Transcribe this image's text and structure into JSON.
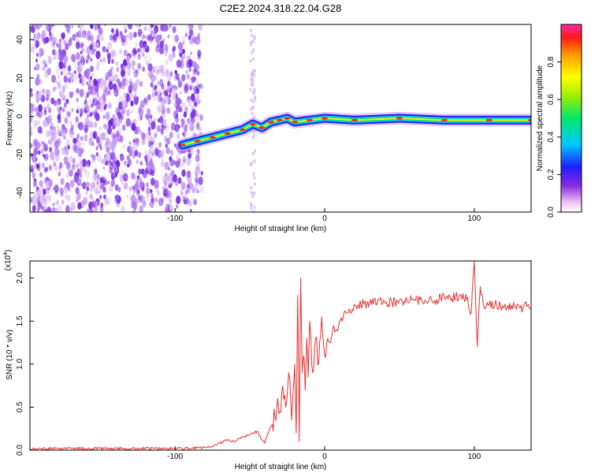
{
  "title": "C2E2.2024.318.22.04.G28",
  "chart_data": [
    {
      "type": "heatmap",
      "xlabel": "Height of straight line (km)",
      "ylabel": "Frequency (Hz)",
      "xlim": [
        -197,
        138
      ],
      "ylim": [
        -50,
        48
      ],
      "xticks": [
        -100,
        0,
        100
      ],
      "xtick_labels": [
        "-100",
        "0",
        "100"
      ],
      "yticks": [
        -40,
        -20,
        0,
        20,
        40
      ],
      "ytick_labels": [
        "-40",
        "-20",
        "0",
        "20",
        "40"
      ],
      "colorbar": {
        "label": "Normalized spectral amplitude",
        "range": [
          0,
          1
        ],
        "ticks": [
          0.0,
          0.2,
          0.4,
          0.6,
          0.8
        ],
        "tick_labels": [
          "0.0",
          "0.2",
          "0.4",
          "0.6",
          "0.8"
        ]
      },
      "noise_region_x": [
        -197,
        -82
      ],
      "ridge": [
        {
          "x": -95,
          "y": -15
        },
        {
          "x": -85,
          "y": -13
        },
        {
          "x": -75,
          "y": -11
        },
        {
          "x": -65,
          "y": -9
        },
        {
          "x": -55,
          "y": -7
        },
        {
          "x": -48,
          "y": -4
        },
        {
          "x": -42,
          "y": -6
        },
        {
          "x": -36,
          "y": -3
        },
        {
          "x": -30,
          "y": -2
        },
        {
          "x": -25,
          "y": -1
        },
        {
          "x": -20,
          "y": -3
        },
        {
          "x": -10,
          "y": -2
        },
        {
          "x": 0,
          "y": -1
        },
        {
          "x": 20,
          "y": -2
        },
        {
          "x": 50,
          "y": -1
        },
        {
          "x": 80,
          "y": -2
        },
        {
          "x": 110,
          "y": -2
        },
        {
          "x": 138,
          "y": -2
        }
      ]
    },
    {
      "type": "line",
      "xlabel": "Height of straight line (km)",
      "ylabel": "SNR (10 * v/v)",
      "scale_note": "(x10",
      "scale_exp": "4",
      "xlim": [
        -197,
        138
      ],
      "ylim": [
        0,
        2.2
      ],
      "xticks": [
        -100,
        0,
        100
      ],
      "xtick_labels": [
        "-100",
        "0",
        "100"
      ],
      "yticks": [
        0.0,
        0.5,
        1.0,
        1.5,
        2.0
      ],
      "ytick_labels": [
        "0.0",
        "0.5",
        "1.0",
        "1.5",
        "2.0"
      ],
      "color": "#e8312f",
      "series": [
        {
          "x": [
            -197,
            -180,
            -160,
            -140,
            -120,
            -100,
            -90,
            -80,
            -75,
            -70,
            -65,
            -60,
            -55,
            -50,
            -45,
            -42,
            -40,
            -38,
            -35,
            -32,
            -30,
            -28,
            -26,
            -24,
            -22,
            -20,
            -19,
            -18,
            -17,
            -16,
            -15,
            -14,
            -13,
            -12,
            -11,
            -10,
            -8,
            -6,
            -4,
            -2,
            0,
            2,
            4,
            6,
            8,
            10,
            14,
            18,
            22,
            26,
            30,
            35,
            40,
            45,
            50,
            55,
            60,
            65,
            70,
            75,
            80,
            85,
            90,
            95,
            98,
            100,
            102,
            104,
            106,
            108,
            110,
            115,
            120,
            125,
            130,
            135,
            138
          ],
          "y": [
            0.02,
            0.02,
            0.02,
            0.02,
            0.02,
            0.02,
            0.02,
            0.03,
            0.04,
            0.08,
            0.12,
            0.1,
            0.15,
            0.18,
            0.22,
            0.12,
            0.08,
            0.2,
            0.3,
            0.5,
            0.45,
            0.75,
            0.5,
            0.9,
            0.35,
            1.0,
            0.2,
            1.8,
            0.1,
            2.0,
            0.9,
            1.1,
            0.7,
            1.3,
            0.85,
            1.5,
            0.9,
            1.3,
            1.0,
            1.55,
            1.1,
            1.3,
            1.25,
            1.45,
            1.4,
            1.5,
            1.6,
            1.6,
            1.68,
            1.7,
            1.72,
            1.7,
            1.73,
            1.72,
            1.74,
            1.75,
            1.74,
            1.73,
            1.76,
            1.75,
            1.78,
            1.76,
            1.8,
            1.75,
            1.6,
            2.2,
            1.2,
            1.9,
            1.7,
            1.68,
            1.7,
            1.68,
            1.67,
            1.68,
            1.66,
            1.67,
            1.65
          ]
        }
      ]
    }
  ]
}
